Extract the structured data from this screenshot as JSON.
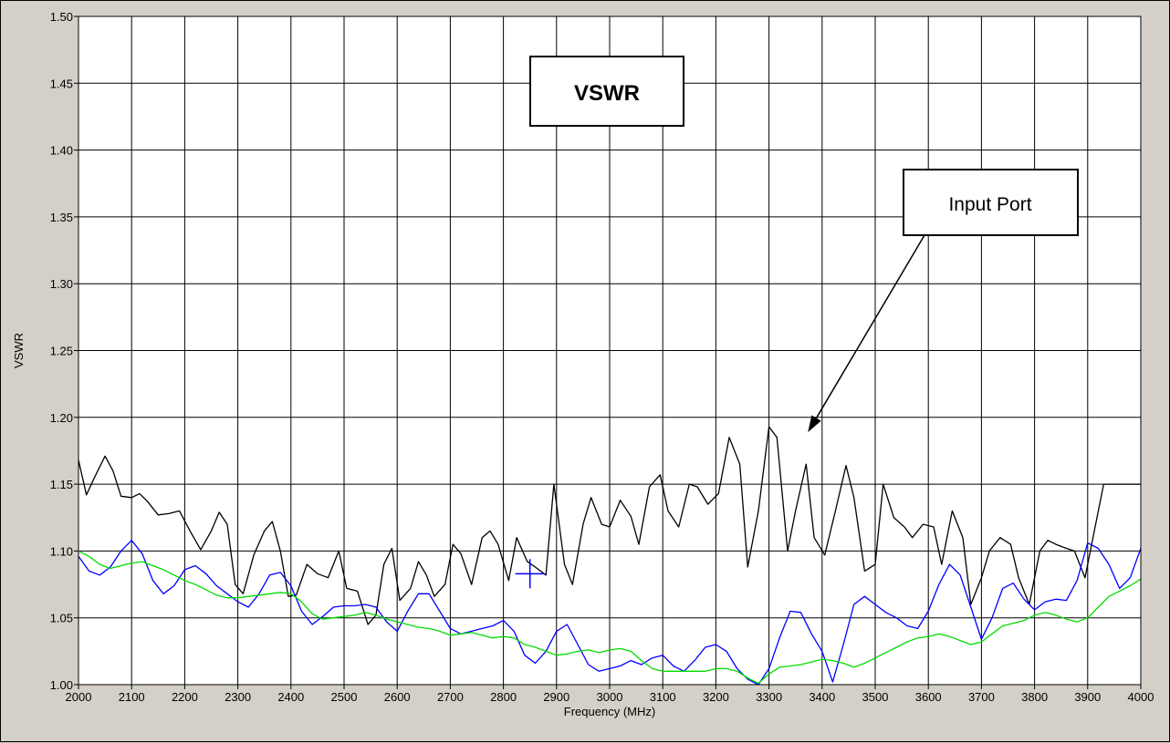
{
  "chart_data": {
    "type": "line",
    "title": "VSWR",
    "xlabel": "Frequency (MHz)",
    "ylabel": "VSWR",
    "xlim": [
      2000,
      4000
    ],
    "ylim": [
      1.0,
      1.5
    ],
    "grid": true,
    "x_ticks": [
      "2000",
      "2100",
      "2200",
      "2300",
      "2400",
      "2500",
      "2600",
      "2700",
      "2800",
      "2900",
      "3000",
      "3100",
      "3200",
      "3300",
      "3400",
      "3500",
      "3600",
      "3700",
      "3800",
      "3900",
      "4000"
    ],
    "y_ticks": [
      "1.00",
      "1.05",
      "1.10",
      "1.15",
      "1.20",
      "1.25",
      "1.30",
      "1.35",
      "1.40",
      "1.45",
      "1.50"
    ],
    "annotations": [
      {
        "text": "Input Port",
        "points_to": {
          "x": 3370,
          "y": 1.193
        }
      }
    ],
    "cursor": {
      "x": 2850,
      "y": 1.083
    },
    "series": [
      {
        "color": "#000000",
        "x": [
          2000,
          2015,
          2030,
          2050,
          2065,
          2080,
          2100,
          2115,
          2130,
          2150,
          2170,
          2190,
          2210,
          2230,
          2250,
          2265,
          2280,
          2295,
          2310,
          2330,
          2350,
          2365,
          2380,
          2395,
          2410,
          2430,
          2450,
          2470,
          2490,
          2505,
          2525,
          2545,
          2560,
          2575,
          2590,
          2605,
          2625,
          2640,
          2655,
          2670,
          2690,
          2705,
          2720,
          2740,
          2760,
          2775,
          2790,
          2810,
          2825,
          2845,
          2860,
          2880,
          2895,
          2915,
          2930,
          2950,
          2965,
          2985,
          3000,
          3020,
          3040,
          3055,
          3075,
          3095,
          3110,
          3130,
          3150,
          3165,
          3185,
          3205,
          3225,
          3245,
          3260,
          3280,
          3300,
          3315,
          3335,
          3350,
          3370,
          3385,
          3405,
          3425,
          3445,
          3460,
          3480,
          3500,
          3515,
          3535,
          3555,
          3570,
          3590,
          3610,
          3625,
          3645,
          3665,
          3680,
          3700,
          3715,
          3735,
          3755,
          3770,
          3790,
          3810,
          3825,
          3840,
          3860,
          3875,
          3895,
          3910,
          3930,
          3945,
          3965,
          3980,
          4000
        ],
        "values": [
          1.168,
          1.142,
          1.155,
          1.171,
          1.16,
          1.141,
          1.14,
          1.143,
          1.137,
          1.127,
          1.128,
          1.13,
          1.115,
          1.101,
          1.115,
          1.129,
          1.12,
          1.075,
          1.068,
          1.097,
          1.115,
          1.122,
          1.1,
          1.066,
          1.067,
          1.09,
          1.083,
          1.08,
          1.1,
          1.072,
          1.07,
          1.045,
          1.052,
          1.09,
          1.102,
          1.063,
          1.072,
          1.092,
          1.082,
          1.066,
          1.075,
          1.105,
          1.098,
          1.075,
          1.11,
          1.115,
          1.105,
          1.078,
          1.11,
          1.092,
          1.088,
          1.082,
          1.15,
          1.09,
          1.075,
          1.12,
          1.14,
          1.12,
          1.118,
          1.138,
          1.126,
          1.105,
          1.148,
          1.157,
          1.13,
          1.118,
          1.15,
          1.148,
          1.135,
          1.143,
          1.185,
          1.165,
          1.088,
          1.13,
          1.193,
          1.185,
          1.1,
          1.13,
          1.165,
          1.11,
          1.097,
          1.13,
          1.164,
          1.14,
          1.085,
          1.09,
          1.15,
          1.125,
          1.118,
          1.11,
          1.12,
          1.118,
          1.09,
          1.13,
          1.11,
          1.06,
          1.08,
          1.1,
          1.11,
          1.105,
          1.08,
          1.06,
          1.1,
          1.108,
          1.105,
          1.102,
          1.1,
          1.08,
          1.11,
          1.15,
          1.15,
          1.15,
          1.15,
          1.15
        ]
      },
      {
        "color": "#0000ff",
        "x": [
          2000,
          2020,
          2040,
          2060,
          2080,
          2100,
          2120,
          2140,
          2160,
          2180,
          2200,
          2220,
          2240,
          2260,
          2280,
          2300,
          2320,
          2340,
          2360,
          2380,
          2400,
          2420,
          2440,
          2460,
          2480,
          2500,
          2520,
          2540,
          2560,
          2580,
          2600,
          2620,
          2640,
          2660,
          2680,
          2700,
          2720,
          2740,
          2760,
          2780,
          2800,
          2820,
          2840,
          2860,
          2880,
          2900,
          2920,
          2940,
          2960,
          2980,
          3000,
          3020,
          3040,
          3060,
          3080,
          3100,
          3120,
          3140,
          3160,
          3180,
          3200,
          3220,
          3240,
          3260,
          3280,
          3300,
          3320,
          3340,
          3360,
          3380,
          3400,
          3420,
          3440,
          3460,
          3480,
          3500,
          3520,
          3540,
          3560,
          3580,
          3600,
          3620,
          3640,
          3660,
          3680,
          3700,
          3720,
          3740,
          3760,
          3780,
          3800,
          3820,
          3840,
          3860,
          3880,
          3900,
          3920,
          3940,
          3960,
          3980,
          4000
        ],
        "values": [
          1.096,
          1.085,
          1.082,
          1.088,
          1.1,
          1.108,
          1.098,
          1.078,
          1.068,
          1.074,
          1.086,
          1.089,
          1.083,
          1.074,
          1.068,
          1.062,
          1.058,
          1.068,
          1.082,
          1.084,
          1.074,
          1.055,
          1.045,
          1.051,
          1.058,
          1.059,
          1.059,
          1.06,
          1.058,
          1.047,
          1.04,
          1.055,
          1.068,
          1.068,
          1.055,
          1.042,
          1.038,
          1.04,
          1.042,
          1.044,
          1.048,
          1.04,
          1.022,
          1.016,
          1.025,
          1.04,
          1.045,
          1.03,
          1.015,
          1.01,
          1.012,
          1.014,
          1.018,
          1.015,
          1.02,
          1.022,
          1.014,
          1.01,
          1.018,
          1.028,
          1.03,
          1.025,
          1.012,
          1.004,
          1.0,
          1.012,
          1.035,
          1.055,
          1.054,
          1.038,
          1.025,
          1.002,
          1.03,
          1.06,
          1.066,
          1.06,
          1.054,
          1.05,
          1.044,
          1.042,
          1.055,
          1.075,
          1.09,
          1.082,
          1.058,
          1.034,
          1.05,
          1.072,
          1.076,
          1.064,
          1.056,
          1.062,
          1.064,
          1.063,
          1.078,
          1.106,
          1.102,
          1.09,
          1.072,
          1.08,
          1.102
        ]
      },
      {
        "color": "#00dd00",
        "x": [
          2000,
          2020,
          2040,
          2060,
          2080,
          2100,
          2120,
          2140,
          2160,
          2180,
          2200,
          2220,
          2240,
          2260,
          2280,
          2300,
          2320,
          2340,
          2360,
          2380,
          2400,
          2420,
          2440,
          2460,
          2480,
          2500,
          2520,
          2540,
          2560,
          2580,
          2600,
          2620,
          2640,
          2660,
          2680,
          2700,
          2720,
          2740,
          2760,
          2780,
          2800,
          2820,
          2840,
          2860,
          2880,
          2900,
          2920,
          2940,
          2960,
          2980,
          3000,
          3020,
          3040,
          3060,
          3080,
          3100,
          3120,
          3140,
          3160,
          3180,
          3200,
          3220,
          3240,
          3260,
          3280,
          3300,
          3320,
          3340,
          3360,
          3380,
          3400,
          3420,
          3440,
          3460,
          3480,
          3500,
          3520,
          3540,
          3560,
          3580,
          3600,
          3620,
          3640,
          3660,
          3680,
          3700,
          3720,
          3740,
          3760,
          3780,
          3800,
          3820,
          3840,
          3860,
          3880,
          3900,
          3920,
          3940,
          3960,
          3980,
          4000
        ],
        "values": [
          1.1,
          1.096,
          1.09,
          1.087,
          1.089,
          1.091,
          1.092,
          1.089,
          1.086,
          1.082,
          1.078,
          1.075,
          1.071,
          1.067,
          1.065,
          1.065,
          1.066,
          1.067,
          1.068,
          1.069,
          1.068,
          1.062,
          1.053,
          1.049,
          1.05,
          1.051,
          1.052,
          1.054,
          1.052,
          1.049,
          1.047,
          1.045,
          1.043,
          1.042,
          1.04,
          1.037,
          1.038,
          1.039,
          1.037,
          1.035,
          1.036,
          1.035,
          1.03,
          1.028,
          1.025,
          1.022,
          1.023,
          1.025,
          1.026,
          1.024,
          1.026,
          1.027,
          1.025,
          1.018,
          1.012,
          1.01,
          1.01,
          1.01,
          1.01,
          1.01,
          1.012,
          1.012,
          1.01,
          1.005,
          1.001,
          1.008,
          1.013,
          1.014,
          1.015,
          1.017,
          1.019,
          1.018,
          1.016,
          1.013,
          1.016,
          1.02,
          1.024,
          1.028,
          1.032,
          1.035,
          1.036,
          1.038,
          1.036,
          1.033,
          1.03,
          1.032,
          1.038,
          1.044,
          1.046,
          1.048,
          1.052,
          1.054,
          1.052,
          1.049,
          1.047,
          1.05,
          1.058,
          1.066,
          1.07,
          1.074,
          1.079
        ]
      }
    ]
  }
}
